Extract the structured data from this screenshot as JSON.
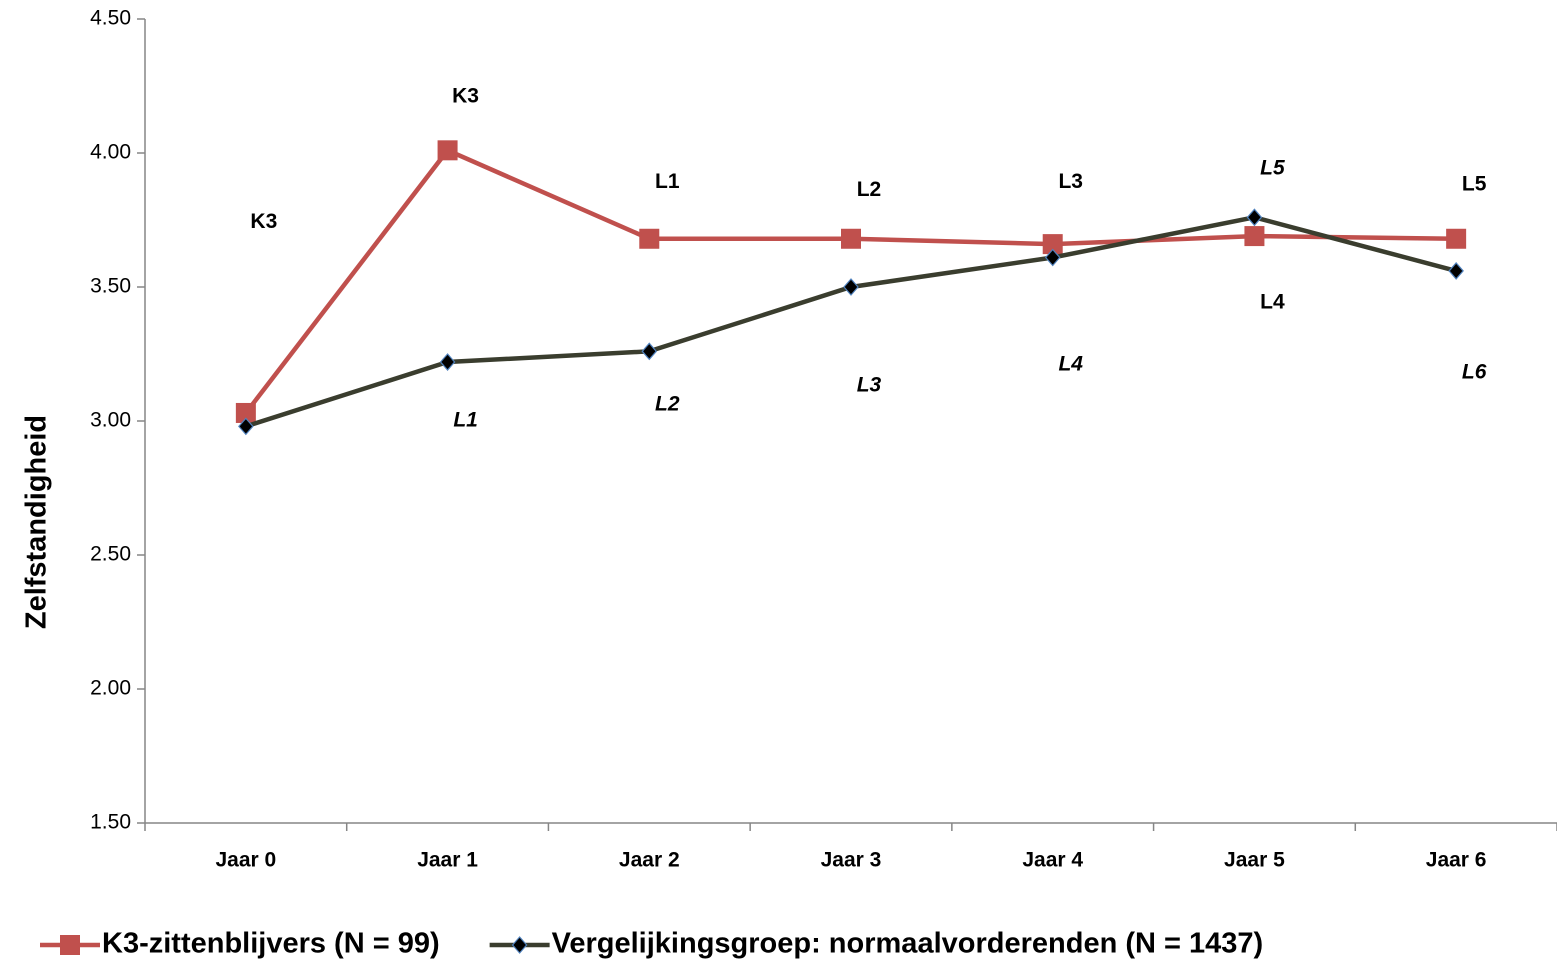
{
  "chart_data": {
    "type": "line",
    "y_label": "Zelfstandigheid",
    "categories": [
      "Jaar 0",
      "Jaar 1",
      "Jaar 2",
      "Jaar 3",
      "Jaar 4",
      "Jaar 5",
      "Jaar 6"
    ],
    "series": [
      {
        "name": "K3-zittenblijvers (N = 99)",
        "color": "#c0504d",
        "marker": "square",
        "values": [
          3.03,
          4.01,
          3.68,
          3.68,
          3.66,
          3.69,
          3.68
        ]
      },
      {
        "name": "Vergelijkingsgroep: normaalvorderenden (N = 1437)",
        "color": "#3a3d2e",
        "marker": "diamond",
        "values": [
          2.98,
          3.22,
          3.26,
          3.5,
          3.61,
          3.76,
          3.56
        ]
      }
    ],
    "ylim": [
      1.5,
      4.5
    ],
    "yticks": [
      {
        "value": 1.5,
        "label": "1.50"
      },
      {
        "value": 2,
        "label": "2.00"
      },
      {
        "value": 2.5,
        "label": "2.50"
      },
      {
        "value": 3,
        "label": "3.00"
      },
      {
        "value": 3.5,
        "label": "3.50"
      },
      {
        "value": 4,
        "label": "4.00"
      },
      {
        "value": 4.5,
        "label": "4.50"
      }
    ],
    "grid": false,
    "legend_position": "bottom",
    "annotations": [
      {
        "text": "K3",
        "category": 0,
        "y": 3.74,
        "italic": false
      },
      {
        "text": "K3",
        "category": 1,
        "y": 4.21,
        "italic": false
      },
      {
        "text": "L1",
        "category": 2,
        "y": 3.89,
        "italic": false
      },
      {
        "text": "L2",
        "category": 3,
        "y": 3.86,
        "italic": false
      },
      {
        "text": "L3",
        "category": 4,
        "y": 3.89,
        "italic": false
      },
      {
        "text": "L4",
        "category": 5,
        "y": 3.44,
        "italic": false
      },
      {
        "text": "L5",
        "category": 6,
        "y": 3.88,
        "italic": false
      },
      {
        "text": "L1",
        "category": 1,
        "y": 3.0,
        "italic": true
      },
      {
        "text": "L2",
        "category": 2,
        "y": 3.06,
        "italic": true
      },
      {
        "text": "L3",
        "category": 3,
        "y": 3.13,
        "italic": true
      },
      {
        "text": "L4",
        "category": 4,
        "y": 3.21,
        "italic": true
      },
      {
        "text": "L5",
        "category": 5,
        "y": 3.94,
        "italic": true
      },
      {
        "text": "L6",
        "category": 6,
        "y": 3.18,
        "italic": true
      }
    ]
  }
}
